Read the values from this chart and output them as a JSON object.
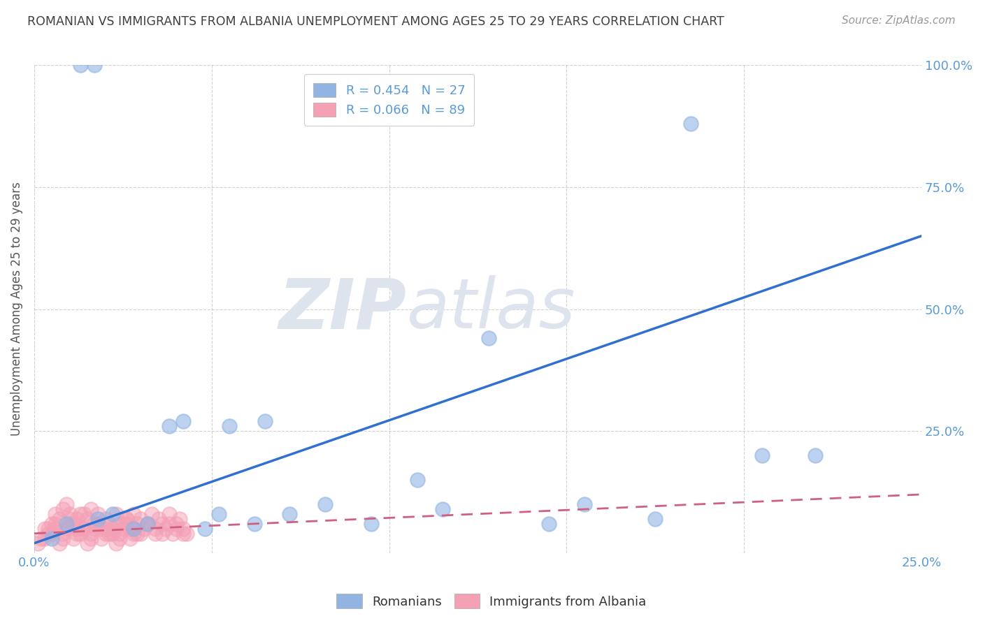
{
  "title": "ROMANIAN VS IMMIGRANTS FROM ALBANIA UNEMPLOYMENT AMONG AGES 25 TO 29 YEARS CORRELATION CHART",
  "source": "Source: ZipAtlas.com",
  "ylabel": "Unemployment Among Ages 25 to 29 years",
  "watermark_zip": "ZIP",
  "watermark_atlas": "atlas",
  "xlim": [
    0.0,
    0.25
  ],
  "ylim": [
    0.0,
    1.0
  ],
  "xticks": [
    0.0,
    0.05,
    0.1,
    0.15,
    0.2,
    0.25
  ],
  "yticks_right": [
    0.0,
    0.25,
    0.5,
    0.75,
    1.0
  ],
  "ytick_labels_right": [
    "",
    "25.0%",
    "50.0%",
    "75.0%",
    "100.0%"
  ],
  "romanian_color": "#92b4e3",
  "albanian_color": "#f4a0b5",
  "romanian_R": 0.454,
  "romanian_N": 27,
  "albanian_R": 0.066,
  "albanian_N": 89,
  "legend_label_romanian": "Romanians",
  "legend_label_albanian": "Immigrants from Albania",
  "romanians_x": [
    0.013,
    0.017,
    0.185,
    0.205,
    0.055,
    0.065,
    0.038,
    0.042,
    0.018,
    0.022,
    0.028,
    0.032,
    0.048,
    0.052,
    0.072,
    0.082,
    0.128,
    0.22,
    0.005,
    0.009,
    0.095,
    0.108,
    0.155,
    0.175,
    0.062,
    0.115,
    0.145
  ],
  "romanians_y": [
    1.0,
    1.0,
    0.88,
    0.2,
    0.26,
    0.27,
    0.26,
    0.27,
    0.07,
    0.08,
    0.05,
    0.06,
    0.05,
    0.08,
    0.08,
    0.1,
    0.44,
    0.2,
    0.03,
    0.06,
    0.06,
    0.15,
    0.1,
    0.07,
    0.06,
    0.09,
    0.06
  ],
  "albanians_x": [
    0.003,
    0.005,
    0.006,
    0.007,
    0.008,
    0.009,
    0.01,
    0.011,
    0.012,
    0.013,
    0.014,
    0.015,
    0.016,
    0.017,
    0.018,
    0.019,
    0.02,
    0.021,
    0.022,
    0.023,
    0.024,
    0.025,
    0.026,
    0.027,
    0.028,
    0.029,
    0.03,
    0.031,
    0.032,
    0.033,
    0.034,
    0.035,
    0.036,
    0.037,
    0.038,
    0.039,
    0.04,
    0.041,
    0.042,
    0.043,
    0.004,
    0.006,
    0.008,
    0.01,
    0.012,
    0.014,
    0.016,
    0.018,
    0.02,
    0.022,
    0.024,
    0.026,
    0.028,
    0.03,
    0.032,
    0.034,
    0.036,
    0.038,
    0.04,
    0.042,
    0.002,
    0.004,
    0.006,
    0.008,
    0.01,
    0.012,
    0.014,
    0.016,
    0.018,
    0.02,
    0.022,
    0.024,
    0.026,
    0.028,
    0.001,
    0.003,
    0.005,
    0.007,
    0.009,
    0.011,
    0.013,
    0.015,
    0.017,
    0.019,
    0.021,
    0.023,
    0.025,
    0.027,
    0.029
  ],
  "albanians_y": [
    0.05,
    0.06,
    0.08,
    0.07,
    0.09,
    0.1,
    0.08,
    0.06,
    0.07,
    0.08,
    0.05,
    0.07,
    0.09,
    0.06,
    0.08,
    0.05,
    0.07,
    0.06,
    0.05,
    0.08,
    0.04,
    0.06,
    0.07,
    0.05,
    0.08,
    0.06,
    0.07,
    0.05,
    0.06,
    0.08,
    0.04,
    0.07,
    0.06,
    0.05,
    0.08,
    0.04,
    0.06,
    0.07,
    0.05,
    0.04,
    0.05,
    0.06,
    0.04,
    0.07,
    0.05,
    0.08,
    0.04,
    0.06,
    0.05,
    0.04,
    0.06,
    0.07,
    0.05,
    0.04,
    0.06,
    0.05,
    0.04,
    0.06,
    0.05,
    0.04,
    0.03,
    0.04,
    0.05,
    0.03,
    0.06,
    0.04,
    0.05,
    0.03,
    0.06,
    0.04,
    0.05,
    0.03,
    0.06,
    0.04,
    0.02,
    0.03,
    0.04,
    0.02,
    0.05,
    0.03,
    0.04,
    0.02,
    0.05,
    0.03,
    0.04,
    0.02,
    0.05,
    0.03,
    0.04
  ],
  "grid_color": "#cccccc",
  "title_color": "#404040",
  "axis_color": "#5b9bd5",
  "ylabel_color": "#555555",
  "background_color": "#ffffff",
  "reg_line_blue": "#3070d0",
  "reg_line_pink": "#d06080",
  "romanian_line_x0": 0.0,
  "romanian_line_y0": 0.02,
  "romanian_line_x1": 0.25,
  "romanian_line_y1": 0.65,
  "albanian_line_x0": 0.0,
  "albanian_line_y0": 0.04,
  "albanian_line_x1": 0.25,
  "albanian_line_y1": 0.12
}
